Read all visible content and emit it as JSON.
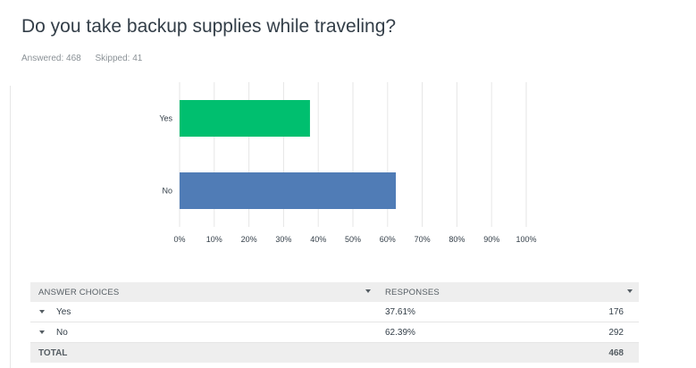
{
  "question": {
    "title": "Do you take backup supplies while traveling?",
    "answered_label": "Answered: 468",
    "skipped_label": "Skipped: 41"
  },
  "colors": {
    "yes": "#00bf6f",
    "no": "#507cb6",
    "grid": "#e6e6e6"
  },
  "chart_data": {
    "type": "bar",
    "orientation": "horizontal",
    "categories": [
      "Yes",
      "No"
    ],
    "values": [
      37.61,
      62.39
    ],
    "xlim": [
      0,
      100
    ],
    "x_ticks": [
      "0%",
      "10%",
      "20%",
      "30%",
      "40%",
      "50%",
      "60%",
      "70%",
      "80%",
      "90%",
      "100%"
    ],
    "grid": true
  },
  "table": {
    "headers": {
      "choices": "ANSWER CHOICES",
      "responses": "RESPONSES"
    },
    "rows": [
      {
        "choice": "Yes",
        "percent": "37.61%",
        "count": "176"
      },
      {
        "choice": "No",
        "percent": "62.39%",
        "count": "292"
      }
    ],
    "total": {
      "label": "TOTAL",
      "count": "468"
    }
  }
}
